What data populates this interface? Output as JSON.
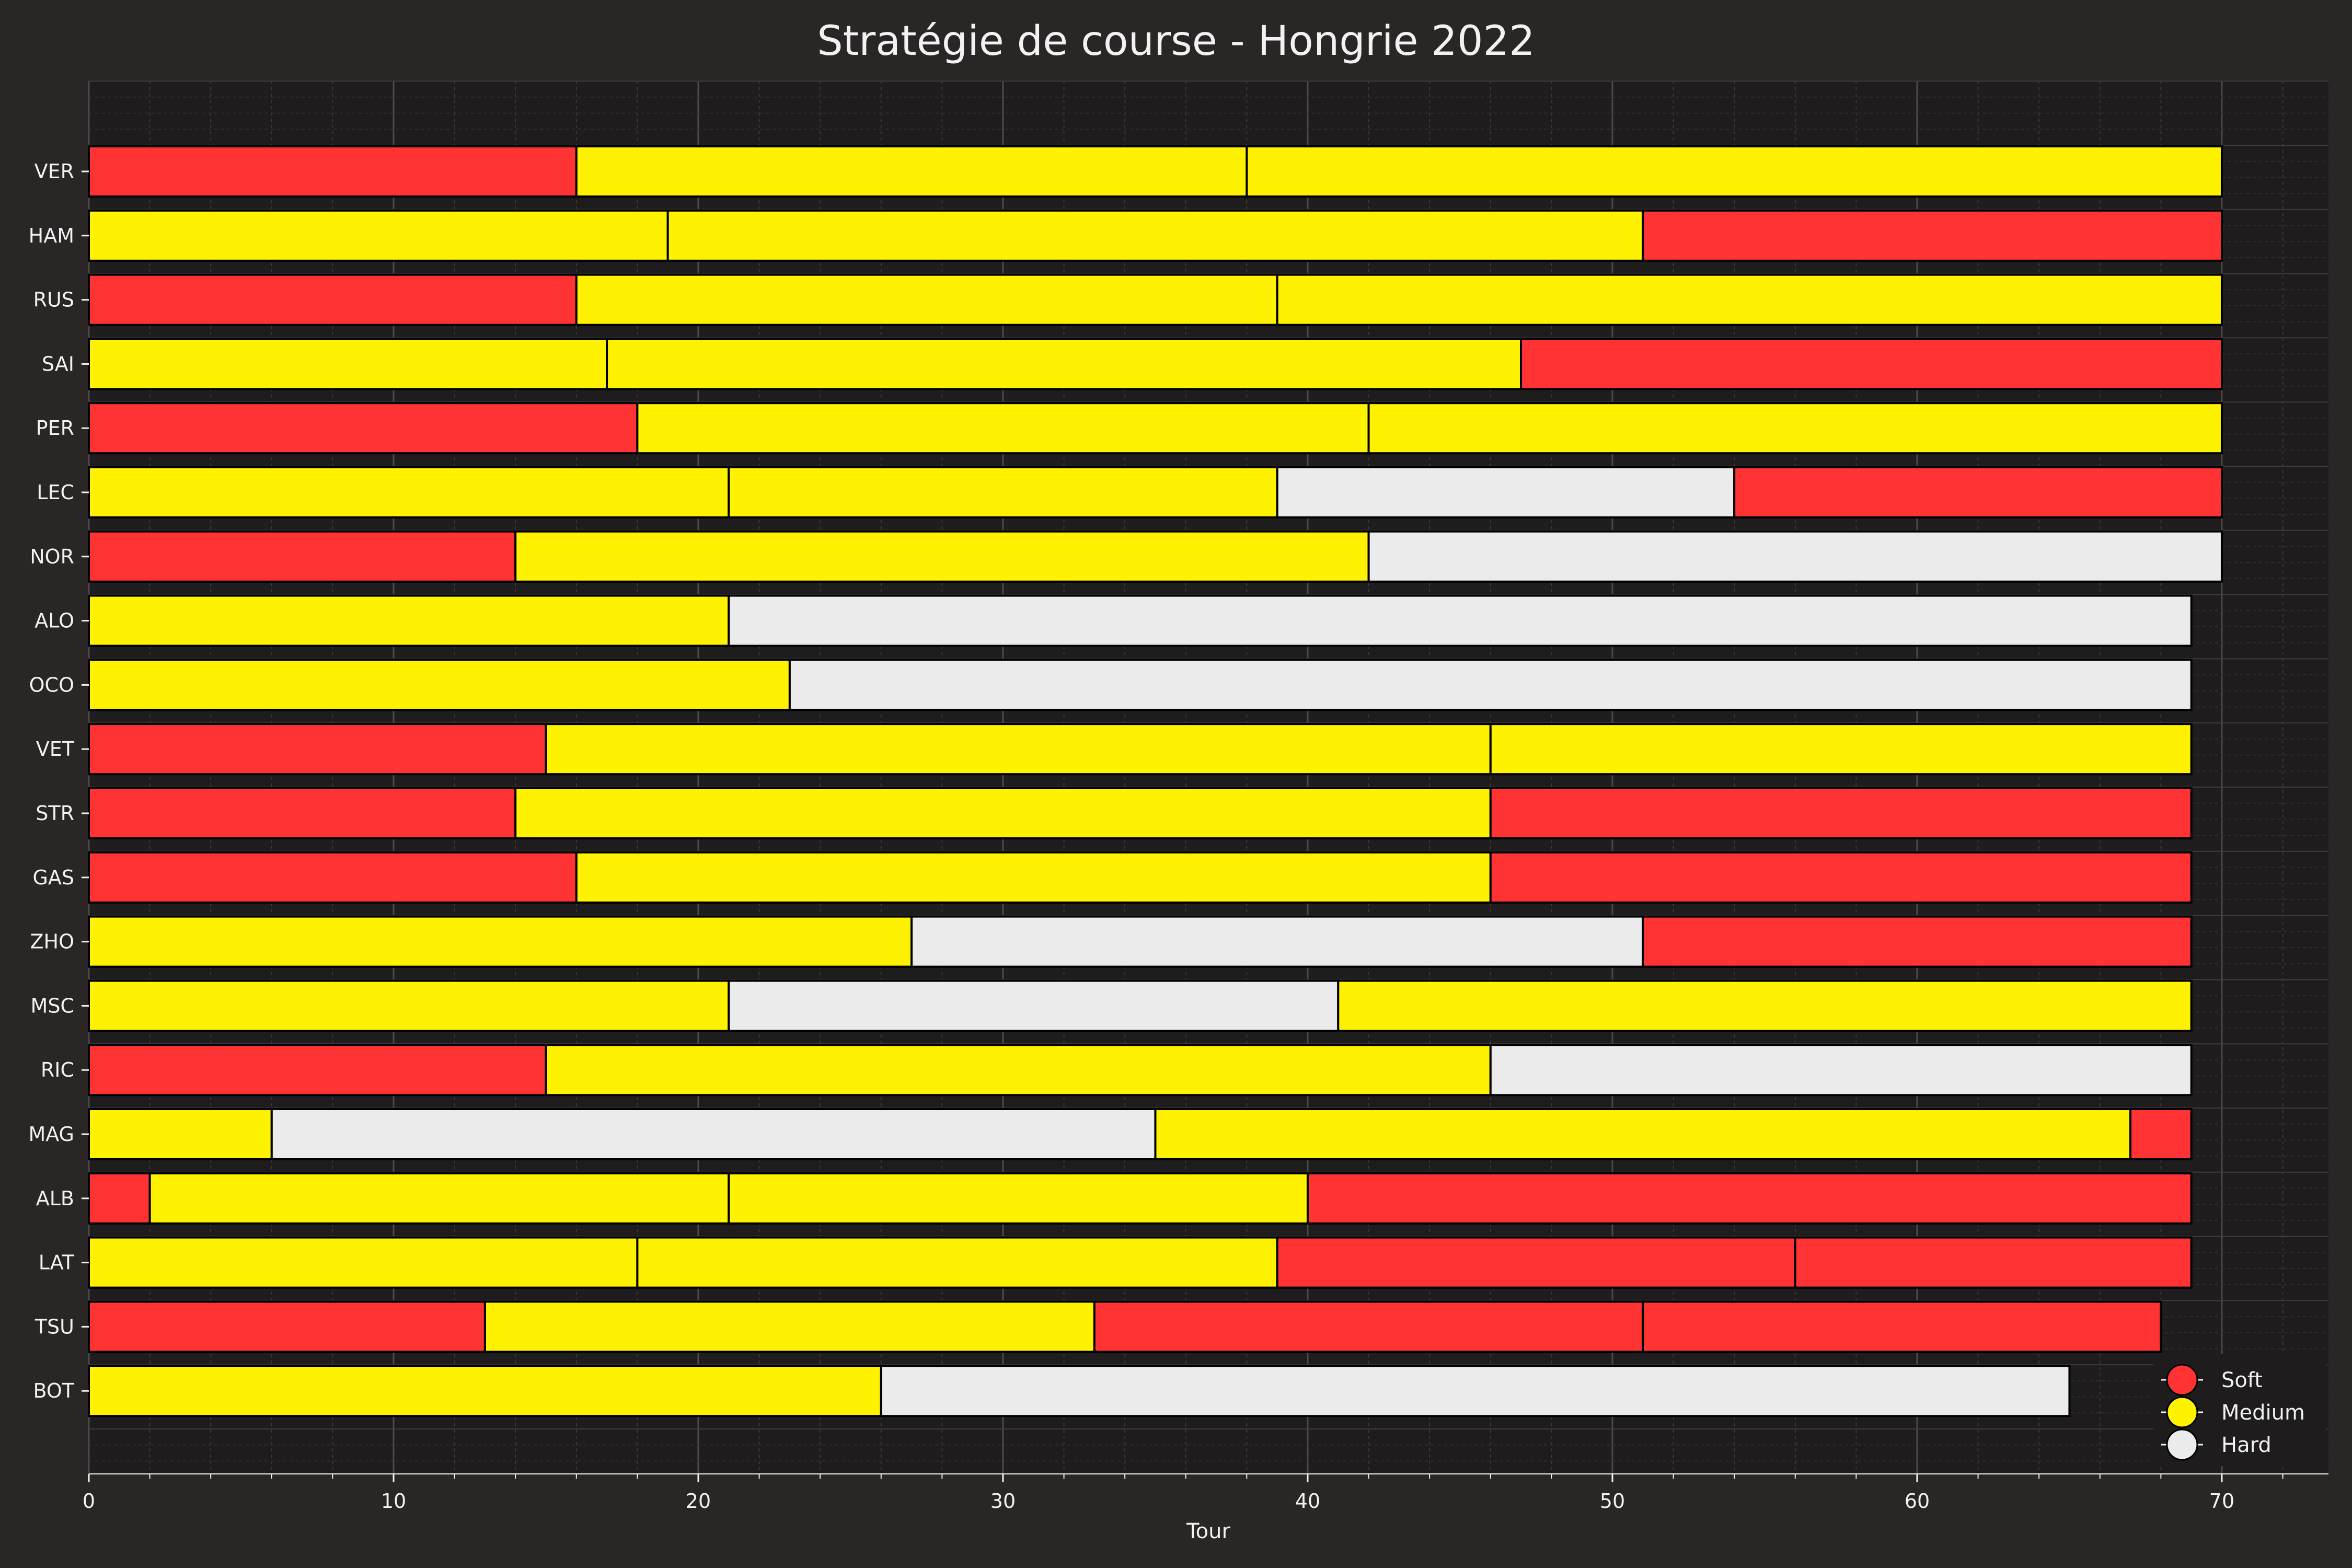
{
  "chart_data": {
    "type": "bar",
    "orientation": "horizontal-stacked",
    "title": "Stratégie de course - Hongrie 2022",
    "xlabel": "Tour",
    "ylabel": "",
    "xlim": [
      0,
      73.5
    ],
    "xticks": [
      0,
      10,
      20,
      30,
      40,
      50,
      60,
      70
    ],
    "grid": true,
    "legend_position": "bottom-right",
    "colors": {
      "Soft": "#ff3333",
      "Medium": "#fff200",
      "Hard": "#ebebeb"
    },
    "legend": [
      "Soft",
      "Medium",
      "Hard"
    ],
    "drivers": [
      {
        "driver": "VER",
        "stints": [
          {
            "compound": "Soft",
            "start": 0,
            "end": 16
          },
          {
            "compound": "Medium",
            "start": 16,
            "end": 38
          },
          {
            "compound": "Medium",
            "start": 38,
            "end": 70
          }
        ]
      },
      {
        "driver": "HAM",
        "stints": [
          {
            "compound": "Medium",
            "start": 0,
            "end": 19
          },
          {
            "compound": "Medium",
            "start": 19,
            "end": 51
          },
          {
            "compound": "Soft",
            "start": 51,
            "end": 70
          }
        ]
      },
      {
        "driver": "RUS",
        "stints": [
          {
            "compound": "Soft",
            "start": 0,
            "end": 16
          },
          {
            "compound": "Medium",
            "start": 16,
            "end": 39
          },
          {
            "compound": "Medium",
            "start": 39,
            "end": 70
          }
        ]
      },
      {
        "driver": "SAI",
        "stints": [
          {
            "compound": "Medium",
            "start": 0,
            "end": 17
          },
          {
            "compound": "Medium",
            "start": 17,
            "end": 47
          },
          {
            "compound": "Soft",
            "start": 47,
            "end": 70
          }
        ]
      },
      {
        "driver": "PER",
        "stints": [
          {
            "compound": "Soft",
            "start": 0,
            "end": 18
          },
          {
            "compound": "Medium",
            "start": 18,
            "end": 42
          },
          {
            "compound": "Medium",
            "start": 42,
            "end": 70
          }
        ]
      },
      {
        "driver": "LEC",
        "stints": [
          {
            "compound": "Medium",
            "start": 0,
            "end": 21
          },
          {
            "compound": "Medium",
            "start": 21,
            "end": 39
          },
          {
            "compound": "Hard",
            "start": 39,
            "end": 54
          },
          {
            "compound": "Soft",
            "start": 54,
            "end": 70
          }
        ]
      },
      {
        "driver": "NOR",
        "stints": [
          {
            "compound": "Soft",
            "start": 0,
            "end": 14
          },
          {
            "compound": "Medium",
            "start": 14,
            "end": 42
          },
          {
            "compound": "Hard",
            "start": 42,
            "end": 70
          }
        ]
      },
      {
        "driver": "ALO",
        "stints": [
          {
            "compound": "Medium",
            "start": 0,
            "end": 21
          },
          {
            "compound": "Hard",
            "start": 21,
            "end": 69
          }
        ]
      },
      {
        "driver": "OCO",
        "stints": [
          {
            "compound": "Medium",
            "start": 0,
            "end": 23
          },
          {
            "compound": "Hard",
            "start": 23,
            "end": 69
          }
        ]
      },
      {
        "driver": "VET",
        "stints": [
          {
            "compound": "Soft",
            "start": 0,
            "end": 15
          },
          {
            "compound": "Medium",
            "start": 15,
            "end": 46
          },
          {
            "compound": "Medium",
            "start": 46,
            "end": 69
          }
        ]
      },
      {
        "driver": "STR",
        "stints": [
          {
            "compound": "Soft",
            "start": 0,
            "end": 14
          },
          {
            "compound": "Medium",
            "start": 14,
            "end": 46
          },
          {
            "compound": "Soft",
            "start": 46,
            "end": 69
          }
        ]
      },
      {
        "driver": "GAS",
        "stints": [
          {
            "compound": "Soft",
            "start": 0,
            "end": 16
          },
          {
            "compound": "Medium",
            "start": 16,
            "end": 46
          },
          {
            "compound": "Soft",
            "start": 46,
            "end": 69
          }
        ]
      },
      {
        "driver": "ZHO",
        "stints": [
          {
            "compound": "Medium",
            "start": 0,
            "end": 27
          },
          {
            "compound": "Hard",
            "start": 27,
            "end": 51
          },
          {
            "compound": "Soft",
            "start": 51,
            "end": 69
          }
        ]
      },
      {
        "driver": "MSC",
        "stints": [
          {
            "compound": "Medium",
            "start": 0,
            "end": 21
          },
          {
            "compound": "Hard",
            "start": 21,
            "end": 41
          },
          {
            "compound": "Medium",
            "start": 41,
            "end": 69
          }
        ]
      },
      {
        "driver": "RIC",
        "stints": [
          {
            "compound": "Soft",
            "start": 0,
            "end": 15
          },
          {
            "compound": "Medium",
            "start": 15,
            "end": 46
          },
          {
            "compound": "Hard",
            "start": 46,
            "end": 69
          }
        ]
      },
      {
        "driver": "MAG",
        "stints": [
          {
            "compound": "Medium",
            "start": 0,
            "end": 6
          },
          {
            "compound": "Hard",
            "start": 6,
            "end": 35
          },
          {
            "compound": "Medium",
            "start": 35,
            "end": 67
          },
          {
            "compound": "Soft",
            "start": 67,
            "end": 69
          }
        ]
      },
      {
        "driver": "ALB",
        "stints": [
          {
            "compound": "Soft",
            "start": 0,
            "end": 2
          },
          {
            "compound": "Medium",
            "start": 2,
            "end": 21
          },
          {
            "compound": "Medium",
            "start": 21,
            "end": 40
          },
          {
            "compound": "Soft",
            "start": 40,
            "end": 69
          }
        ]
      },
      {
        "driver": "LAT",
        "stints": [
          {
            "compound": "Medium",
            "start": 0,
            "end": 18
          },
          {
            "compound": "Medium",
            "start": 18,
            "end": 39
          },
          {
            "compound": "Soft",
            "start": 39,
            "end": 56
          },
          {
            "compound": "Soft",
            "start": 56,
            "end": 69
          }
        ]
      },
      {
        "driver": "TSU",
        "stints": [
          {
            "compound": "Soft",
            "start": 0,
            "end": 13
          },
          {
            "compound": "Medium",
            "start": 13,
            "end": 33
          },
          {
            "compound": "Soft",
            "start": 33,
            "end": 51
          },
          {
            "compound": "Soft",
            "start": 51,
            "end": 68
          }
        ]
      },
      {
        "driver": "BOT",
        "stints": [
          {
            "compound": "Medium",
            "start": 0,
            "end": 26
          },
          {
            "compound": "Hard",
            "start": 26,
            "end": 65
          }
        ]
      }
    ]
  }
}
